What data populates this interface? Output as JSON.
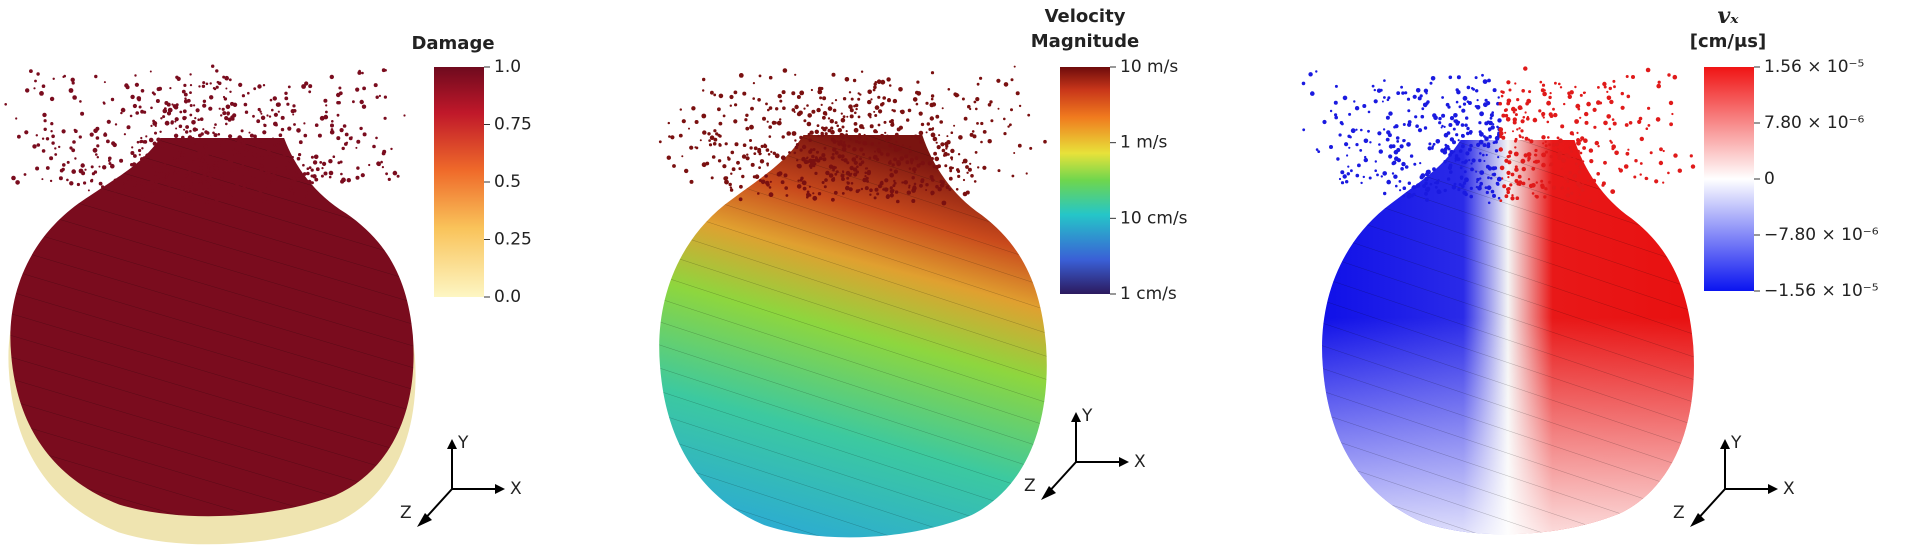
{
  "panels": [
    {
      "colorbar": {
        "title": [
          "Damage"
        ],
        "ticks": [
          "1.0",
          "0.75",
          "0.5",
          "0.25",
          "0.0"
        ]
      },
      "axes": {
        "x": "X",
        "y": "Y",
        "z": "Z"
      }
    },
    {
      "colorbar": {
        "title": [
          "Velocity",
          "Magnitude"
        ],
        "ticks": [
          "10 m/s",
          "1 m/s",
          "10 cm/s",
          "1 cm/s"
        ]
      },
      "axes": {
        "x": "X",
        "y": "Y",
        "z": "Z"
      }
    },
    {
      "colorbar": {
        "title": [
          "vₓ",
          "[cm/μs]"
        ],
        "ticks": [
          "1.56 × 10⁻⁵",
          "7.80 × 10⁻⁶",
          "0",
          "−7.80 × 10⁻⁶",
          "−1.56 × 10⁻⁵"
        ]
      },
      "axes": {
        "x": "X",
        "y": "Y",
        "z": "Z"
      }
    }
  ]
}
